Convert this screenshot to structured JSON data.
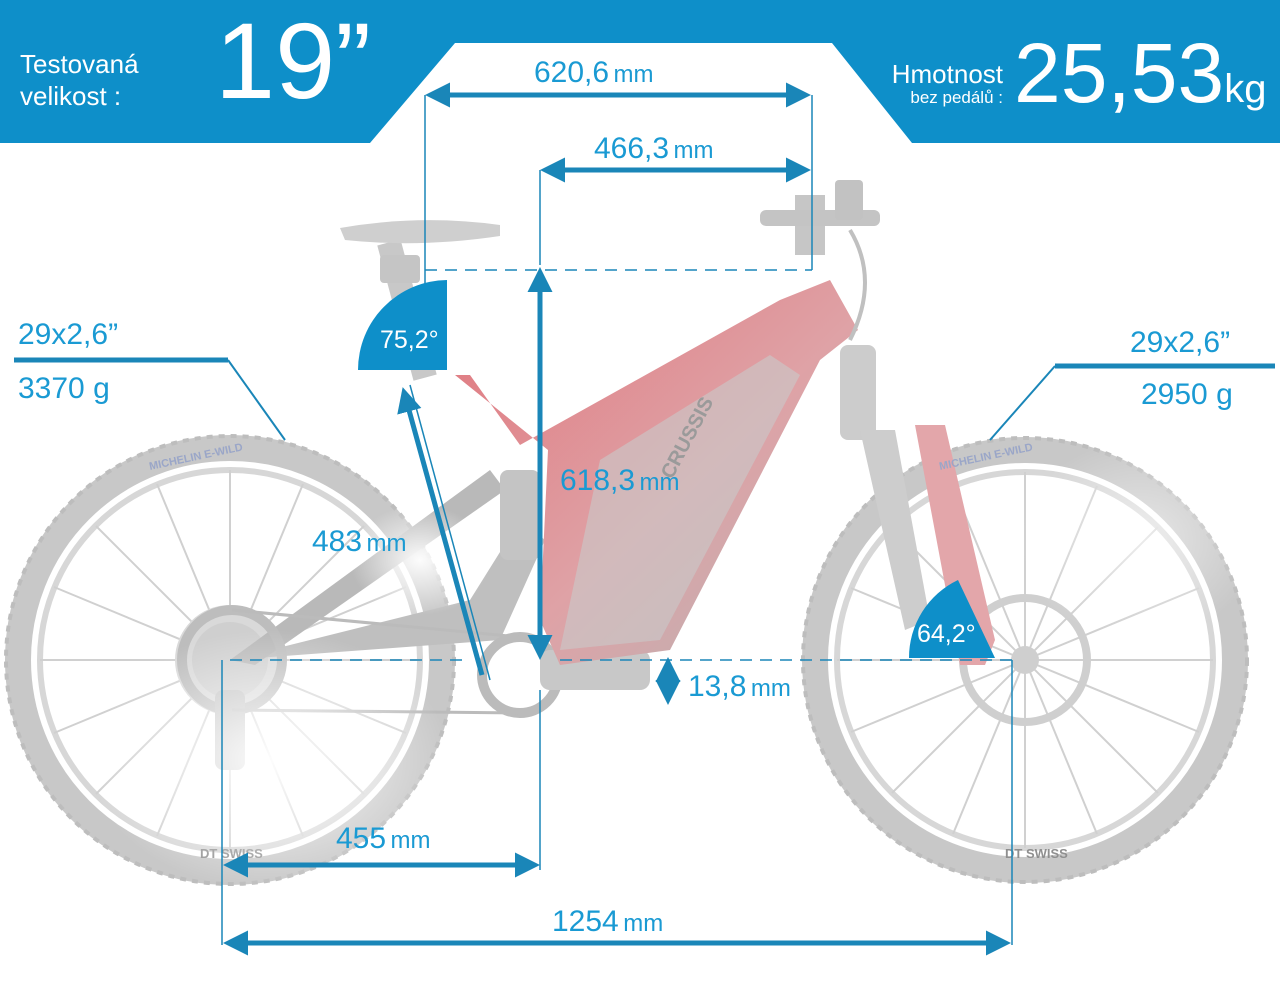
{
  "header": {
    "tested_size_label_line1": "Testovaná",
    "tested_size_label_line2": "velikost :",
    "tested_size_value": "19”",
    "weight_label": "Hmotnost",
    "weight_sublabel": "bez pedálů :",
    "weight_value": "25,53",
    "weight_unit": "kg"
  },
  "colors": {
    "accent": "#0e8fc9",
    "dimension_line": "#1a86b8",
    "text": "#1a9ad3",
    "white": "#ffffff"
  },
  "tires": {
    "rear": {
      "size": "29x2,6”",
      "weight": "3370 g"
    },
    "front": {
      "size": "29x2,6”",
      "weight": "2950 g"
    }
  },
  "angles": {
    "seat_tube": "75,2°",
    "head_tube": "64,2°"
  },
  "dimensions": {
    "top_tube": {
      "value": "620,6",
      "unit": "mm"
    },
    "reach": {
      "value": "466,3",
      "unit": "mm"
    },
    "stack": {
      "value": "618,3",
      "unit": "mm"
    },
    "seat_tube": {
      "value": "483",
      "unit": "mm"
    },
    "bb_drop": {
      "value": "13,8",
      "unit": "mm"
    },
    "chainstay": {
      "value": "455",
      "unit": "mm"
    },
    "wheelbase": {
      "value": "1254",
      "unit": "mm"
    }
  },
  "brand_marks": {
    "frame": "CRUSSIS",
    "tire_brand": "MICHELIN",
    "tire_model": "E-WILD",
    "rim_brand": "DT SWISS"
  }
}
